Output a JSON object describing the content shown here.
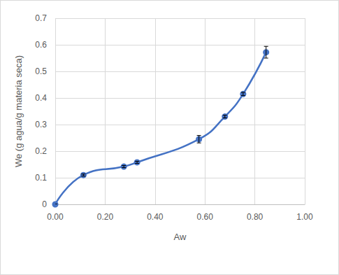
{
  "chart_data": {
    "type": "line",
    "x_label": "Aw",
    "y_label": "We (g agua/g materia seca)",
    "x": [
      0,
      0.113,
      0.275,
      0.328,
      0.576,
      0.68,
      0.753,
      0.845
    ],
    "values": [
      0,
      0.11,
      0.142,
      0.158,
      0.245,
      0.33,
      0.415,
      0.572
    ],
    "errors": [
      0,
      0.004,
      0.004,
      0.004,
      0.014,
      0.005,
      0.006,
      0.022
    ],
    "color": "#4472c4",
    "marker": "circle",
    "line_style": "smooth",
    "xlim": [
      0,
      1
    ],
    "xticks": [
      {
        "value": 0,
        "label": "0.00"
      },
      {
        "value": 0.2,
        "label": "0.20"
      },
      {
        "value": 0.4,
        "label": "0.40"
      },
      {
        "value": 0.6,
        "label": "0.60"
      },
      {
        "value": 0.8,
        "label": "0.80"
      },
      {
        "value": 1,
        "label": "1.00"
      }
    ],
    "ylim": [
      0,
      0.7
    ],
    "yticks": [
      0,
      0.1,
      0.2,
      0.3,
      0.4,
      0.5,
      0.6,
      0.7
    ],
    "grid": true
  }
}
